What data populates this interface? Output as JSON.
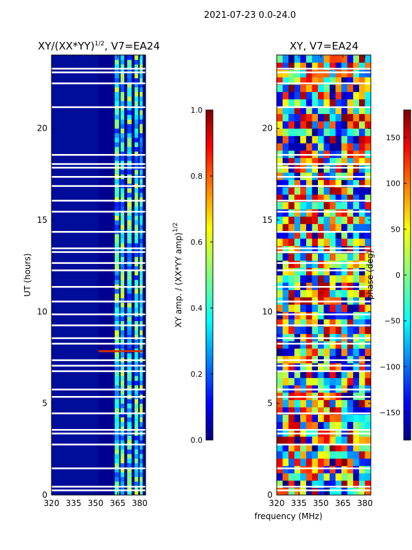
{
  "suptitle": "2021-07-23 0.0-24.0",
  "left": {
    "title_main": "XY/(XX*YY)",
    "title_sup": "1/2",
    "title_tail": ", V7=EA24",
    "ylabel": "UT (hours)",
    "xticks": [
      "320",
      "335",
      "350",
      "365",
      "380"
    ],
    "yticks": [
      "0",
      "5",
      "10",
      "15",
      "20"
    ]
  },
  "right": {
    "title": "XY, V7=EA24",
    "xticks": [
      "320",
      "335",
      "350",
      "365",
      "380"
    ],
    "yticks": [
      "0",
      "5",
      "10",
      "15",
      "20"
    ]
  },
  "xlabel": "frequency (MHz)",
  "cbar_amp": {
    "label_main": "XY amp. / (XX*YY amp)",
    "label_sup": "1/2",
    "ticks": [
      "0.0",
      "0.2",
      "0.4",
      "0.6",
      "0.8",
      "1.0"
    ]
  },
  "cbar_phase": {
    "label": "phase (deg)",
    "ticks": [
      "150",
      "100",
      "50",
      "0",
      "−50",
      "−100",
      "−150"
    ]
  },
  "chart_data": [
    {
      "type": "heatmap",
      "title": "XY/(XX*YY)^1/2, V7=EA24",
      "xlabel": "frequency (MHz)",
      "ylabel": "UT (hours)",
      "xlim": [
        320,
        384
      ],
      "ylim": [
        0,
        24
      ],
      "colormap": "jet",
      "clim": [
        0.0,
        1.0
      ],
      "colorbar_label": "XY amp. / (XX*YY amp)^1/2"
    },
    {
      "type": "heatmap",
      "title": "XY, V7=EA24",
      "xlabel": "frequency (MHz)",
      "ylabel": "UT (hours)",
      "xlim": [
        320,
        384
      ],
      "ylim": [
        0,
        24
      ],
      "colormap": "jet",
      "clim": [
        -180,
        180
      ],
      "colorbar_label": "phase (deg)"
    }
  ]
}
